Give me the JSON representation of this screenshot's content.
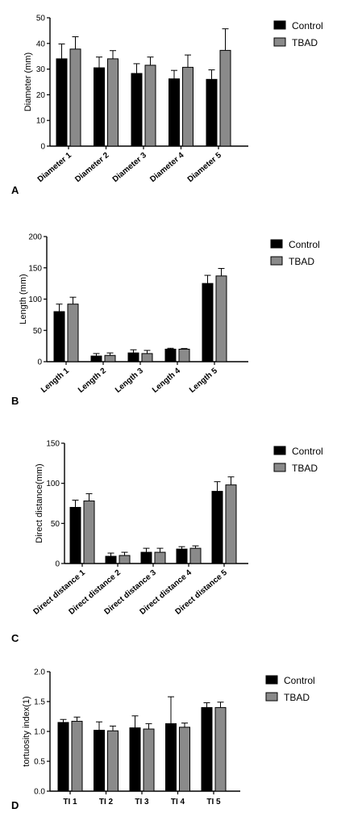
{
  "legend": {
    "series": [
      "Control",
      "TBAD"
    ]
  },
  "colors": {
    "control": "#000000",
    "tbad": "#8a8a8a"
  },
  "chart_data": [
    {
      "type": "bar",
      "panel_label": "A",
      "ylabel": "Diameter (mm)",
      "ylim": [
        0,
        50
      ],
      "yticks": [
        "0",
        "10",
        "20",
        "30",
        "40",
        "50"
      ],
      "categories": [
        "Diameter 1",
        "Diameter 2",
        "Diameter 3",
        "Diameter 4",
        "Diameter 5"
      ],
      "series": [
        {
          "name": "Control",
          "values": [
            34,
            30.5,
            28.3,
            26.2,
            26
          ],
          "error": [
            5.8,
            4.2,
            3.8,
            3.3,
            3.7
          ]
        },
        {
          "name": "TBAD",
          "values": [
            37.8,
            34,
            31.5,
            30.7,
            37.3
          ],
          "error": [
            4.8,
            3.2,
            3.2,
            4.8,
            8.4
          ]
        }
      ],
      "legend_position": "top-right"
    },
    {
      "type": "bar",
      "panel_label": "B",
      "ylabel": "Length (mm)",
      "ylim": [
        0,
        200
      ],
      "yticks": [
        "0",
        "50",
        "100",
        "150",
        "200"
      ],
      "categories": [
        "Length 1",
        "Length 2",
        "Length 3",
        "Length 4",
        "Length 5"
      ],
      "series": [
        {
          "name": "Control",
          "values": [
            80,
            9,
            14,
            20,
            125
          ],
          "error": [
            12,
            4,
            5,
            1.5,
            13
          ]
        },
        {
          "name": "TBAD",
          "values": [
            92,
            10,
            13,
            20,
            137
          ],
          "error": [
            11,
            4,
            5,
            1,
            12
          ]
        }
      ],
      "legend_position": "top-right"
    },
    {
      "type": "bar",
      "panel_label": "C",
      "ylabel": "Direct distance(mm)",
      "ylim": [
        0,
        150
      ],
      "yticks": [
        "0",
        "50",
        "100",
        "150"
      ],
      "categories": [
        "Direct distance 1",
        "Direct distance 2",
        "Direct distance 3",
        "Direct distance 4",
        "Direct distance 5"
      ],
      "series": [
        {
          "name": "Control",
          "values": [
            70,
            9,
            14,
            18,
            90
          ],
          "error": [
            9,
            4,
            5,
            3,
            12
          ]
        },
        {
          "name": "TBAD",
          "values": [
            78,
            10,
            14,
            19,
            98
          ],
          "error": [
            9,
            4,
            5,
            3,
            10
          ]
        }
      ],
      "legend_position": "top-right"
    },
    {
      "type": "bar",
      "panel_label": "D",
      "ylabel": "tortuosity index(1)",
      "ylim": [
        0,
        2.0
      ],
      "yticks": [
        "0.0",
        "0.5",
        "1.0",
        "1.5",
        "2.0"
      ],
      "categories": [
        "TI 1",
        "TI 2",
        "TI 3",
        "TI 4",
        "TI 5"
      ],
      "series": [
        {
          "name": "Control",
          "values": [
            1.15,
            1.02,
            1.06,
            1.13,
            1.4
          ],
          "error": [
            0.05,
            0.14,
            0.2,
            0.45,
            0.08
          ]
        },
        {
          "name": "TBAD",
          "values": [
            1.17,
            1.01,
            1.04,
            1.07,
            1.4
          ],
          "error": [
            0.07,
            0.08,
            0.09,
            0.07,
            0.09
          ]
        }
      ],
      "legend_position": "top-right"
    }
  ]
}
